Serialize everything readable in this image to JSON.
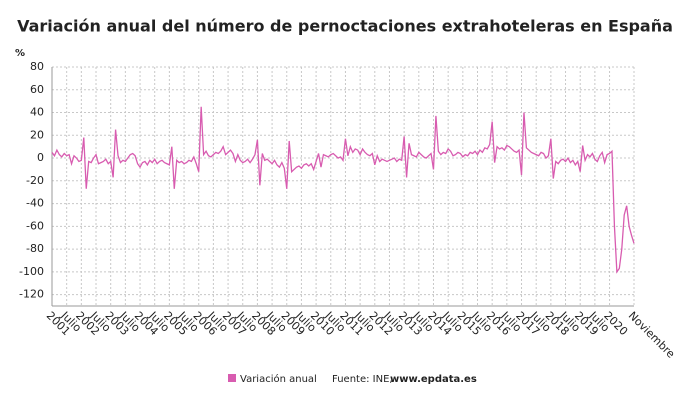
{
  "chart_data": {
    "type": "line",
    "title": "Variación anual del número de pernoctaciones extrahoteleras en España",
    "y_unit": "%",
    "source_label": "Fuente: INE,",
    "source_site": "www.epdata.es",
    "ylim": [
      -130,
      80
    ],
    "yticks": [
      80,
      60,
      40,
      20,
      0,
      -20,
      -40,
      -60,
      -80,
      -100,
      -120
    ],
    "grid": true,
    "categories": [
      "2001",
      null,
      null,
      null,
      null,
      null,
      "Julio",
      null,
      null,
      null,
      null,
      null,
      "2002",
      null,
      null,
      null,
      null,
      null,
      "Julio",
      null,
      null,
      null,
      null,
      null,
      "2003",
      null,
      null,
      null,
      null,
      null,
      "Julio",
      null,
      null,
      null,
      null,
      null,
      "2004",
      null,
      null,
      null,
      null,
      null,
      "Julio",
      null,
      null,
      null,
      null,
      null,
      "2005",
      null,
      null,
      null,
      null,
      null,
      "Julio",
      null,
      null,
      null,
      null,
      null,
      "2006",
      null,
      null,
      null,
      null,
      null,
      "Julio",
      null,
      null,
      null,
      null,
      null,
      "2007",
      null,
      null,
      null,
      null,
      null,
      "Julio",
      null,
      null,
      null,
      null,
      null,
      "2008",
      null,
      null,
      null,
      null,
      null,
      "Julio",
      null,
      null,
      null,
      null,
      null,
      "2009",
      null,
      null,
      null,
      null,
      null,
      "Julio",
      null,
      null,
      null,
      null,
      null,
      "2010",
      null,
      null,
      null,
      null,
      null,
      "Julio",
      null,
      null,
      null,
      null,
      null,
      "2011",
      null,
      null,
      null,
      null,
      null,
      "Julio",
      null,
      null,
      null,
      null,
      null,
      "2012",
      null,
      null,
      null,
      null,
      null,
      "Julio",
      null,
      null,
      null,
      null,
      null,
      "2013",
      null,
      null,
      null,
      null,
      null,
      "Julio",
      null,
      null,
      null,
      null,
      null,
      "2014",
      null,
      null,
      null,
      null,
      null,
      "Julio",
      null,
      null,
      null,
      null,
      null,
      "2015",
      null,
      null,
      null,
      null,
      null,
      "Julio",
      null,
      null,
      null,
      null,
      null,
      "2016",
      null,
      null,
      null,
      null,
      null,
      "Julio",
      null,
      null,
      null,
      null,
      null,
      "2017",
      null,
      null,
      null,
      null,
      null,
      "Julio",
      null,
      null,
      null,
      null,
      null,
      "2018",
      null,
      null,
      null,
      null,
      null,
      "Julio",
      null,
      null,
      null,
      null,
      null,
      "2019",
      null,
      null,
      null,
      null,
      null,
      "Julio",
      null,
      null,
      null,
      null,
      null,
      "2020",
      null,
      null,
      null,
      null,
      null,
      null,
      null,
      null,
      null,
      "Noviembre"
    ],
    "series": [
      {
        "name": "Variación anual",
        "color": "#d85cb0",
        "values": [
          5,
          2,
          7,
          3,
          1,
          4,
          2,
          3,
          -5,
          2,
          0,
          -3,
          -2,
          18,
          -27,
          -3,
          -4,
          0,
          3,
          -5,
          -4,
          -3,
          -1,
          -5,
          -3,
          -17,
          25,
          2,
          -4,
          -2,
          -3,
          0,
          3,
          4,
          2,
          -5,
          -8,
          -4,
          -3,
          -6,
          -2,
          -4,
          -1,
          -5,
          -3,
          -2,
          -4,
          -5,
          -6,
          10,
          -27,
          -2,
          -4,
          -3,
          -5,
          -4,
          -2,
          -3,
          1,
          -5,
          -12,
          45,
          3,
          6,
          2,
          1,
          3,
          5,
          4,
          6,
          10,
          3,
          5,
          7,
          4,
          -3,
          3,
          -2,
          -4,
          -3,
          -1,
          -4,
          -1,
          3,
          16,
          -24,
          4,
          -2,
          -1,
          -3,
          -5,
          -2,
          -6,
          -8,
          -4,
          -9,
          -27,
          15,
          -12,
          -10,
          -8,
          -7,
          -9,
          -6,
          -5,
          -7,
          -5,
          -10,
          -3,
          4,
          -8,
          3,
          2,
          1,
          3,
          4,
          2,
          0,
          1,
          -2,
          17,
          2,
          10,
          5,
          8,
          7,
          3,
          8,
          5,
          3,
          2,
          4,
          -6,
          2,
          -3,
          -1,
          -2,
          -3,
          -2,
          -1,
          0,
          -3,
          -1,
          -2,
          19,
          -17,
          13,
          3,
          2,
          1,
          5,
          3,
          1,
          0,
          2,
          4,
          -10,
          37,
          6,
          3,
          5,
          4,
          8,
          6,
          2,
          3,
          5,
          4,
          1,
          3,
          2,
          5,
          4,
          6,
          3,
          7,
          5,
          9,
          8,
          12,
          32,
          -4,
          10,
          8,
          9,
          7,
          11,
          10,
          8,
          6,
          5,
          7,
          -15,
          40,
          9,
          7,
          5,
          4,
          3,
          2,
          5,
          4,
          0,
          2,
          17,
          -18,
          -3,
          -5,
          -2,
          -1,
          -3,
          0,
          -4,
          -2,
          -6,
          -3,
          -12,
          11,
          -2,
          3,
          1,
          4,
          -1,
          -3,
          2,
          5,
          -4,
          3,
          4,
          6,
          -60,
          -100,
          -97,
          -80,
          -50,
          -42,
          -60,
          -68,
          -75
        ]
      }
    ]
  }
}
